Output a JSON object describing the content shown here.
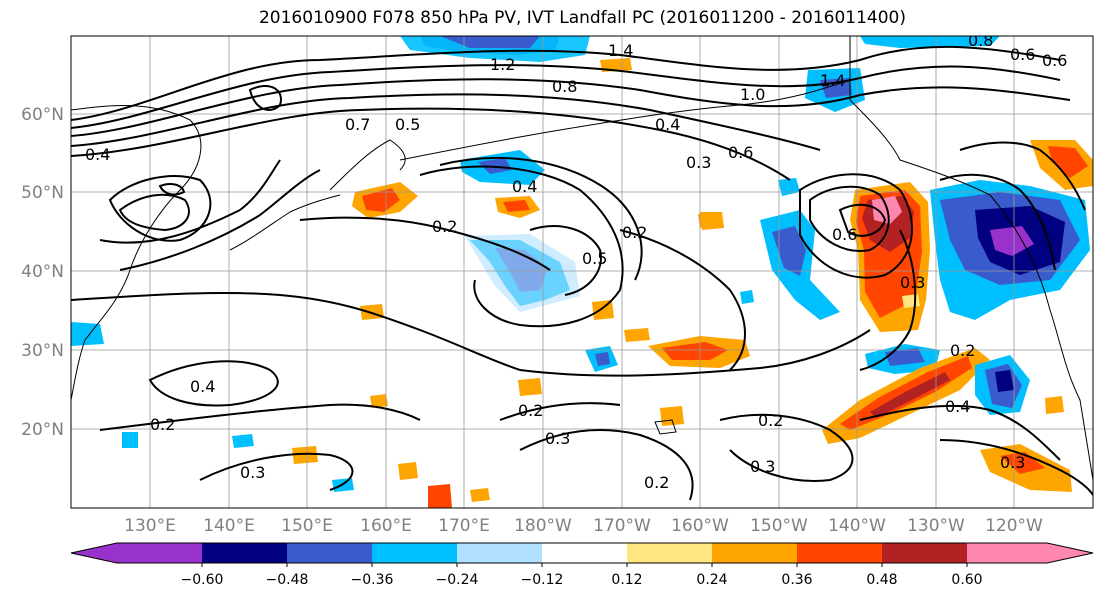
{
  "title": "2016010900 F078 850 hPa PV, IVT Landfall PC (2016011200 - 2016011400)",
  "lat_labels": [
    "60°N",
    "50°N",
    "40°N",
    "30°N",
    "20°N"
  ],
  "lon_labels": [
    "130°E",
    "140°E",
    "150°E",
    "160°E",
    "170°E",
    "180°W",
    "170°W",
    "160°W",
    "150°W",
    "140°W",
    "130°W",
    "120°W"
  ],
  "colorbar": {
    "ticks": [
      "−0.60",
      "−0.48",
      "−0.36",
      "−0.24",
      "−0.12",
      "0.12",
      "0.24",
      "0.36",
      "0.48",
      "0.60"
    ],
    "colors": [
      "#9932cc",
      "#000080",
      "#3a5bcb",
      "#00bfff",
      "#b0e0ff",
      "#ffffff",
      "#ffe680",
      "#ffa500",
      "#ff4500",
      "#b22222",
      "#ff88b0"
    ]
  },
  "contour_labels": [
    "1.4",
    "1.2",
    "0.8",
    "1.0",
    "1.4",
    "0.7",
    "0.5",
    "0.4",
    "0.6",
    "0.3",
    "0.4",
    "0.2",
    "0.5",
    "0.2",
    "0.6",
    "0.3",
    "0.4",
    "0.2",
    "0.3",
    "0.2",
    "0.3",
    "0.2",
    "0.4",
    "0.3",
    "0.2",
    "0.3",
    "0.2",
    "0.4",
    "0.6",
    "0.8",
    "0.6"
  ]
}
